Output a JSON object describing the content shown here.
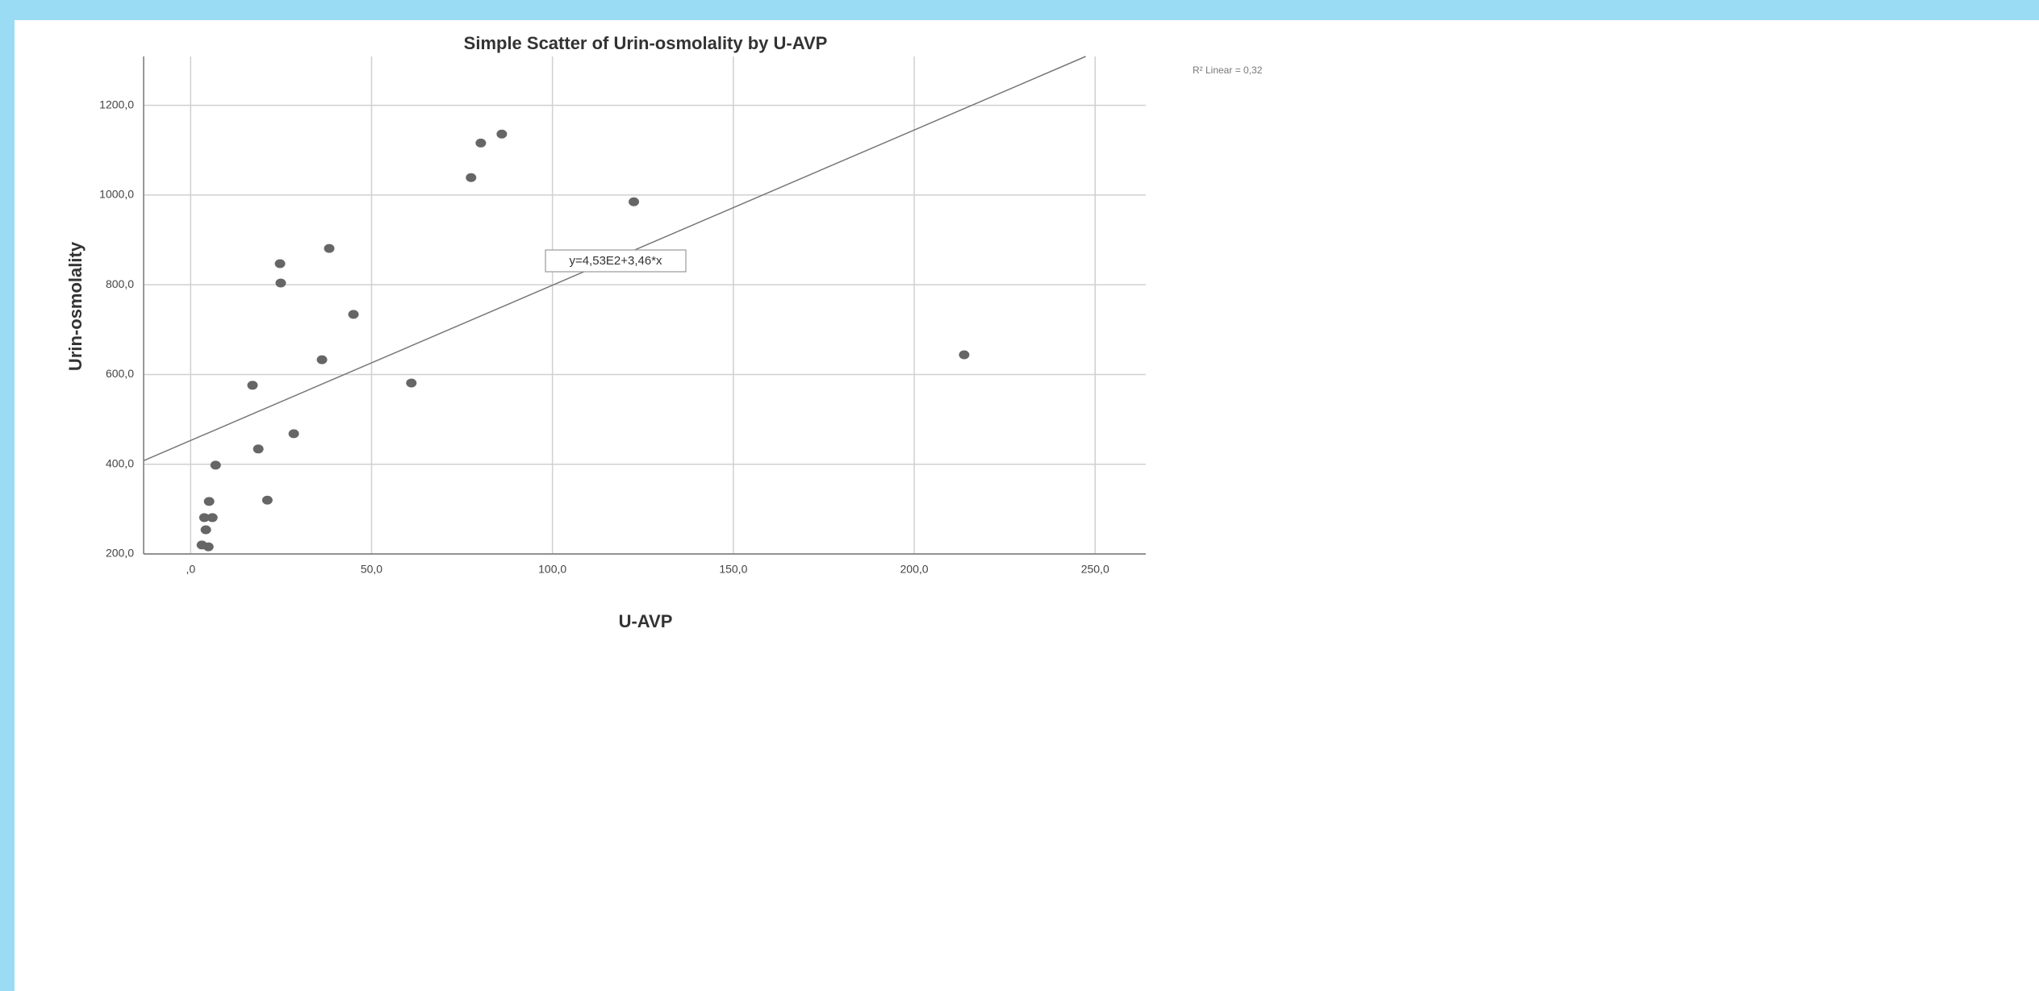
{
  "chart_data": {
    "type": "scatter",
    "title": "Simple Scatter of Urin-osmolality by U-AVP",
    "x_label": "U-AVP",
    "y_label": "Urin-osmolality",
    "series": [
      {
        "name": "Urin-osmolality",
        "color": "#666666",
        "x": [
          3.1,
          4.9,
          4.2,
          3.8,
          6.0,
          5.1,
          6.9,
          21.2,
          18.7,
          28.5,
          17.1,
          36.3,
          61.0,
          45.0,
          24.9,
          24.7,
          38.3,
          77.5,
          80.2,
          86.0,
          122.5,
          213.8
        ],
        "values": [
          220,
          216,
          254,
          281,
          281,
          317,
          398,
          320,
          434,
          468,
          576,
          633,
          581,
          734,
          804,
          847,
          881,
          1039,
          1116,
          1136,
          985,
          644
        ]
      }
    ],
    "fit": {
      "intercept": 453,
      "slope": 3.46,
      "label": "y=4,53E2+3,46*x",
      "r2_label": "R² Linear = 0,32"
    },
    "xlim": [
      -13,
      264
    ],
    "ylim": [
      200,
      1309
    ],
    "xticks": [
      {
        "value": 0,
        "label": ",0"
      },
      {
        "value": 50,
        "label": "50,0"
      },
      {
        "value": 100,
        "label": "100,0"
      },
      {
        "value": 150,
        "label": "150,0"
      },
      {
        "value": 200,
        "label": "200,0"
      },
      {
        "value": 250,
        "label": "250,0"
      }
    ],
    "yticks": [
      {
        "value": 200,
        "label": "200,0"
      },
      {
        "value": 400,
        "label": "400,0"
      },
      {
        "value": 600,
        "label": "600,0"
      },
      {
        "value": 800,
        "label": "800,0"
      },
      {
        "value": 1000,
        "label": "1000,0"
      },
      {
        "value": 1200,
        "label": "1200,0"
      }
    ],
    "grid": true
  }
}
